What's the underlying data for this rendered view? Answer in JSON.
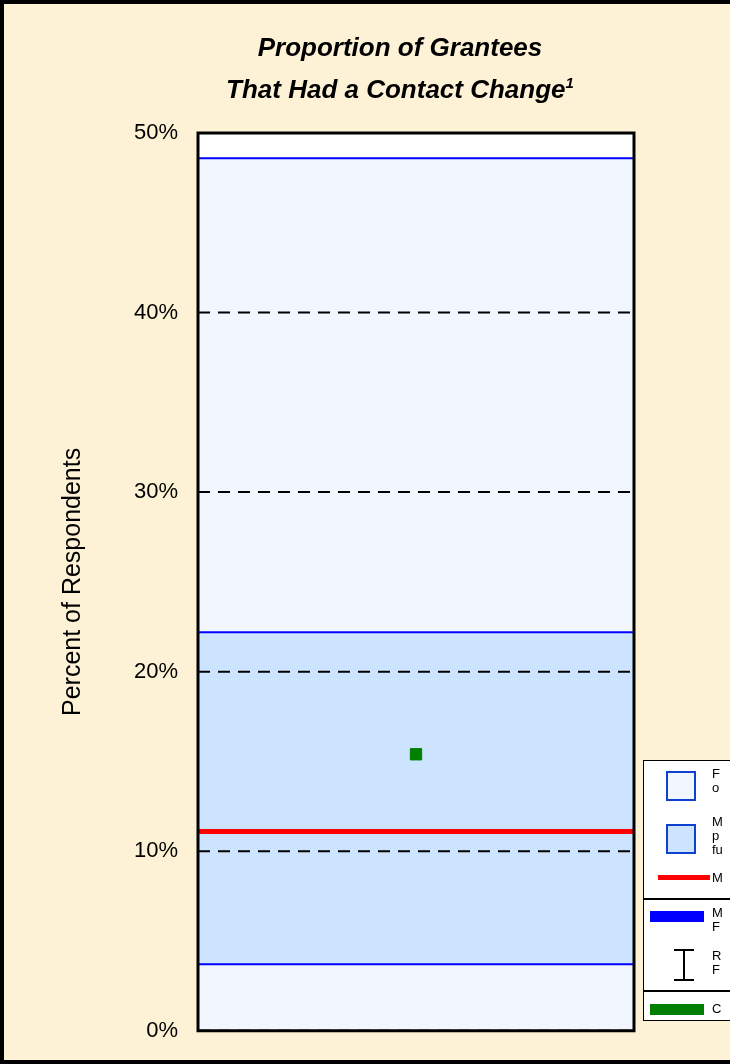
{
  "chart_data": {
    "type": "scatter",
    "title": "Proportion of Grantees\nThat Had a Contact Change$^{1}$",
    "ylabel": "Percent of Respondents",
    "categories": [
      null
    ],
    "series": [
      {
        "color": "#008000",
        "values": [
          15.4
        ]
      }
    ],
    "marker": "square",
    "ylim": [
      0,
      50
    ],
    "yticks": [
      {
        "value": 0,
        "label": "0%"
      },
      {
        "value": 10,
        "label": "10%"
      },
      {
        "value": 20,
        "label": "20%"
      },
      {
        "value": 30,
        "label": "30%"
      },
      {
        "value": 40,
        "label": "40%"
      },
      {
        "value": 50,
        "label": "50%"
      }
    ],
    "grid": "y",
    "bands": [
      {
        "axis": "y",
        "from": 0,
        "to": 48.6,
        "color": "#f2f7ff"
      },
      {
        "axis": "y",
        "from": 3.7,
        "to": 22.2,
        "color": "#cce4ff"
      }
    ],
    "ref_lines": [
      {
        "axis": "y",
        "value": 11.1,
        "color": "#ff0000"
      },
      {
        "axis": "y",
        "value": 48.6,
        "color": "#0000ff"
      },
      {
        "axis": "y",
        "value": 22.2,
        "color": "#0000ff"
      },
      {
        "axis": "y",
        "value": 3.7,
        "color": "#0000ff"
      }
    ],
    "annotations": [
      "F\no",
      "M\np\nfu",
      "M",
      "M\nF",
      "R\nF",
      "C"
    ]
  }
}
